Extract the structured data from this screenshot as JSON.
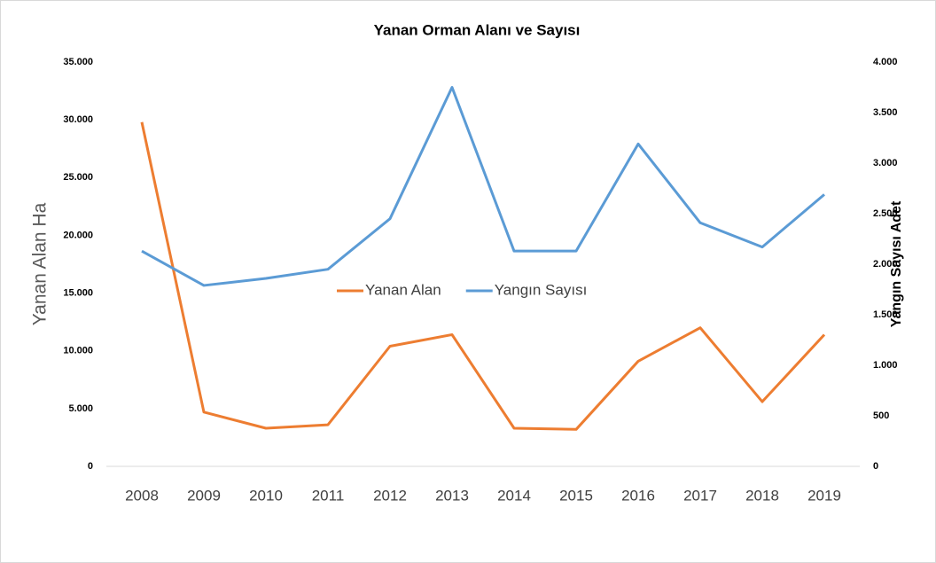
{
  "chart_data": {
    "type": "line",
    "title": "Yanan Orman Alanı ve Sayısı",
    "ylabel": "Yanan Alan Ha",
    "y2label": "Yangın Sayısı Adet",
    "categories": [
      "2008",
      "2009",
      "2010",
      "2011",
      "2012",
      "2013",
      "2014",
      "2015",
      "2016",
      "2017",
      "2018",
      "2019"
    ],
    "series": [
      {
        "name": "Yanan Alan",
        "color": "#ed7d31",
        "values": [
          29800,
          4700,
          3300,
          3600,
          10400,
          11400,
          3300,
          3200,
          9100,
          12000,
          5600,
          11400
        ]
      },
      {
        "name": "Yangın Sayısı",
        "color": "#5b9bd5",
        "axis": "y2",
        "values": [
          2130,
          1790,
          1860,
          1950,
          2450,
          3750,
          2130,
          2130,
          3190,
          2410,
          2170,
          2690
        ]
      }
    ],
    "ylim": [
      0,
      35000
    ],
    "yticks": [
      0,
      {
        "value": 5000,
        "label": "5.000"
      },
      {
        "value": 10000,
        "label": "10.000"
      },
      {
        "value": 15000,
        "label": "15.000"
      },
      {
        "value": 20000,
        "label": "20.000"
      },
      {
        "value": 25000,
        "label": "25.000"
      },
      {
        "value": 30000,
        "label": "30.000"
      },
      {
        "value": 35000,
        "label": "35.000"
      }
    ],
    "y2lim": [
      0,
      4000
    ],
    "y2ticks": [
      0,
      500,
      {
        "value": 1000,
        "label": "1.000"
      },
      {
        "value": 1500,
        "label": "1.500"
      },
      {
        "value": 2000,
        "label": "2.000"
      },
      {
        "value": 2500,
        "label": "2.500"
      },
      {
        "value": 3000,
        "label": "3.000"
      },
      {
        "value": 3500,
        "label": "3.500"
      },
      {
        "value": 4000,
        "label": "4.000"
      }
    ],
    "grid": false,
    "legend": "center"
  }
}
